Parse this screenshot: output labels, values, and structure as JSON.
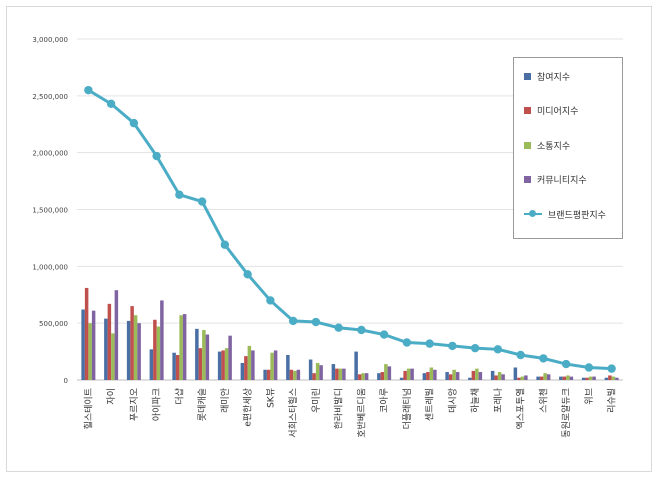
{
  "chart_data": {
    "type": "bar",
    "title": "",
    "xlabel": "",
    "ylabel": "",
    "ylim": [
      0,
      3000000
    ],
    "yticks": [
      "0",
      "500,000",
      "1,000,000",
      "1,500,000",
      "2,000,000",
      "2,500,000",
      "3,000,000"
    ],
    "grid": true,
    "legend_position": "top-right",
    "categories": [
      "힐스테이트",
      "자이",
      "푸르지오",
      "아이파크",
      "더샵",
      "롯데캐슬",
      "래미안",
      "e편한세상",
      "SK뷰",
      "서희스타힐스",
      "우미린",
      "한라비발디",
      "호반베르디움",
      "코아루",
      "더플래티넘",
      "센트레빌",
      "데시앙",
      "하늘채",
      "포레나",
      "엑스포투엘",
      "스위첸",
      "동원로얄듀크",
      "위브",
      "리슈빌"
    ],
    "series": [
      {
        "name": "참여지수",
        "color": "#4a6fa5",
        "values": [
          620000,
          540000,
          520000,
          270000,
          240000,
          450000,
          250000,
          150000,
          90000,
          220000,
          180000,
          140000,
          250000,
          60000,
          20000,
          60000,
          70000,
          20000,
          80000,
          110000,
          30000,
          30000,
          20000,
          20000
        ]
      },
      {
        "name": "미디어지수",
        "color": "#c0504d",
        "values": [
          810000,
          670000,
          650000,
          530000,
          220000,
          280000,
          260000,
          210000,
          90000,
          90000,
          60000,
          100000,
          50000,
          70000,
          80000,
          70000,
          50000,
          80000,
          40000,
          20000,
          30000,
          30000,
          20000,
          40000
        ]
      },
      {
        "name": "소통지수",
        "color": "#9bbb59",
        "values": [
          500000,
          410000,
          570000,
          470000,
          570000,
          440000,
          280000,
          300000,
          240000,
          80000,
          150000,
          100000,
          60000,
          140000,
          100000,
          110000,
          90000,
          100000,
          70000,
          30000,
          60000,
          40000,
          30000,
          30000
        ]
      },
      {
        "name": "커뮤니티지수",
        "color": "#8064a2",
        "values": [
          610000,
          790000,
          500000,
          700000,
          580000,
          400000,
          390000,
          260000,
          260000,
          90000,
          130000,
          100000,
          60000,
          120000,
          100000,
          90000,
          70000,
          70000,
          50000,
          40000,
          50000,
          30000,
          30000,
          20000
        ]
      },
      {
        "name": "브랜드평판지수",
        "type": "line",
        "color": "#4bacc6",
        "values": [
          2550000,
          2430000,
          2260000,
          1970000,
          1630000,
          1570000,
          1190000,
          930000,
          700000,
          520000,
          510000,
          460000,
          440000,
          400000,
          330000,
          320000,
          300000,
          280000,
          270000,
          220000,
          190000,
          140000,
          110000,
          100000
        ]
      }
    ]
  }
}
